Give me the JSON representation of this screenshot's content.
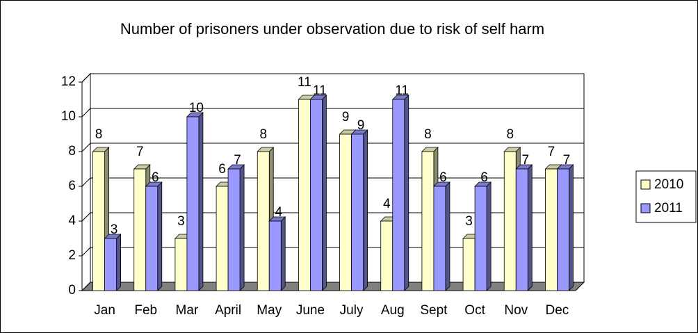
{
  "chart_data": {
    "type": "bar3d",
    "title": "Number of prisoners under observation due to risk of self harm",
    "categories": [
      "Jan",
      "Feb",
      "Mar",
      "April",
      "May",
      "June",
      "July",
      "Aug",
      "Sept",
      "Oct",
      "Nov",
      "Dec"
    ],
    "series": [
      {
        "name": "2010",
        "color": "#ffffcc",
        "values": [
          8,
          7,
          3,
          6,
          8,
          11,
          9,
          4,
          8,
          3,
          8,
          7
        ]
      },
      {
        "name": "2011",
        "color": "#9999ff",
        "values": [
          3,
          6,
          10,
          7,
          4,
          11,
          9,
          11,
          6,
          6,
          7,
          7
        ]
      }
    ],
    "ylim": [
      0,
      12
    ],
    "yticks": [
      0,
      2,
      4,
      6,
      8,
      10,
      12
    ],
    "grid": true,
    "legend": "right"
  }
}
